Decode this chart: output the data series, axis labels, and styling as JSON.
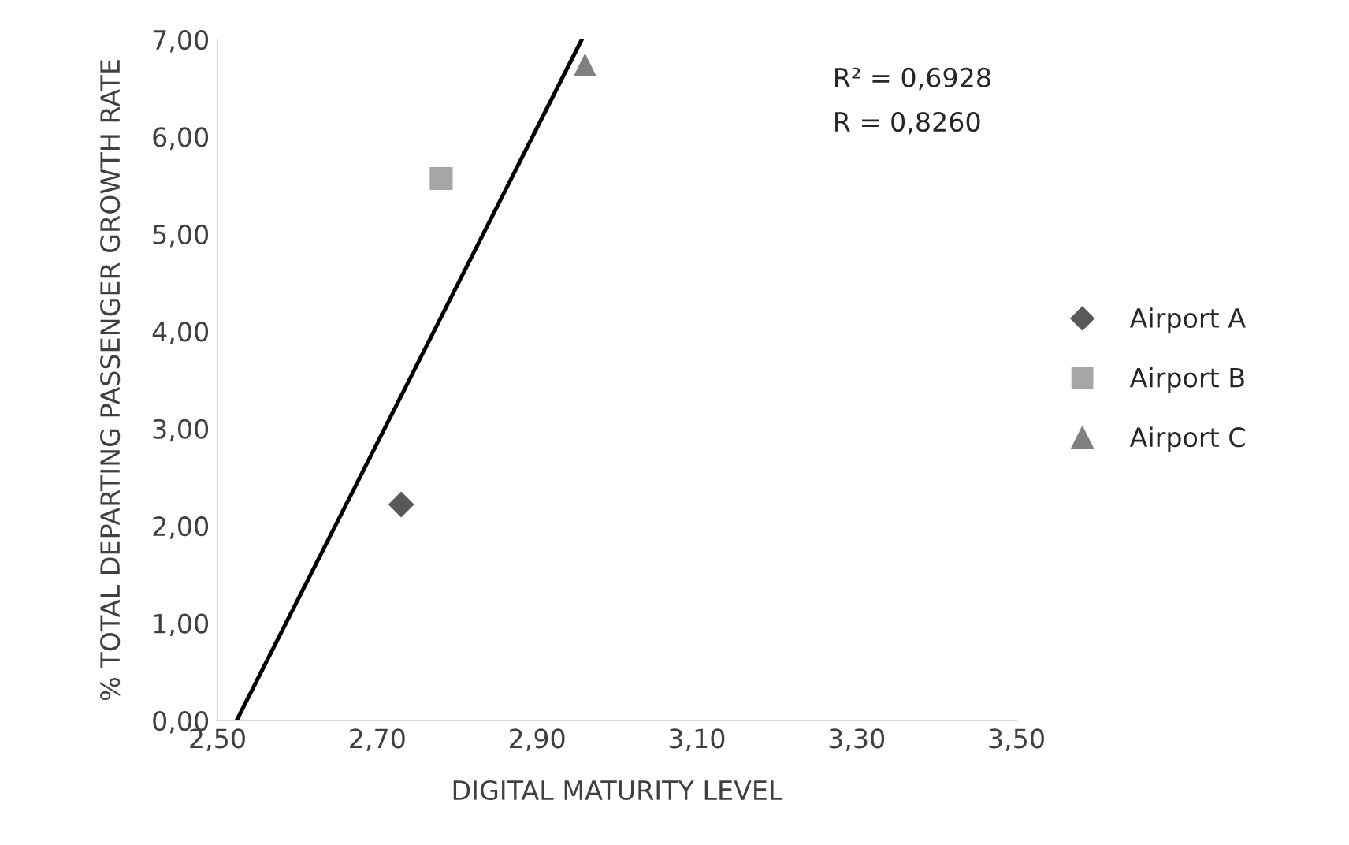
{
  "chart_data": {
    "type": "scatter",
    "xlabel": "DIGITAL MATURITY LEVEL",
    "ylabel": "% TOTAL DEPARTING PASSENGER GROWTH RATE",
    "series": [
      {
        "name": "Airport A",
        "color": "#595959",
        "marker": "diamond",
        "x": [
          2.73
        ],
        "values": [
          2.22
        ]
      },
      {
        "name": "Airport B",
        "color": "#a6a6a6",
        "marker": "square",
        "x": [
          2.78
        ],
        "values": [
          5.57
        ]
      },
      {
        "name": "Airport C",
        "color": "#808080",
        "marker": "triangle",
        "x": [
          2.96
        ],
        "values": [
          6.74
        ]
      },
      {
        "type": "line",
        "color": "#000000",
        "marker": "none",
        "x": [
          2.524,
          2.956
        ],
        "values": [
          0.0,
          7.0
        ]
      }
    ],
    "annotations": [
      "R² = 0,6928",
      "R = 0,8260"
    ],
    "xlim": [
      2.5,
      3.5
    ],
    "xticks": [
      {
        "value": 2.5,
        "label": "2,50"
      },
      {
        "value": 2.7,
        "label": "2,70"
      },
      {
        "value": 2.9,
        "label": "2,90"
      },
      {
        "value": 3.1,
        "label": "3,10"
      },
      {
        "value": 3.3,
        "label": "3,30"
      },
      {
        "value": 3.5,
        "label": "3,50"
      }
    ],
    "ylim": [
      0,
      7
    ],
    "yticks": [
      {
        "value": 0,
        "label": "0,00"
      },
      {
        "value": 1,
        "label": "1,00"
      },
      {
        "value": 2,
        "label": "2,00"
      },
      {
        "value": 3,
        "label": "3,00"
      },
      {
        "value": 4,
        "label": "4,00"
      },
      {
        "value": 5,
        "label": "5,00"
      },
      {
        "value": 6,
        "label": "6,00"
      },
      {
        "value": 7,
        "label": "7,00"
      }
    ],
    "grid": false,
    "legend": "right"
  }
}
